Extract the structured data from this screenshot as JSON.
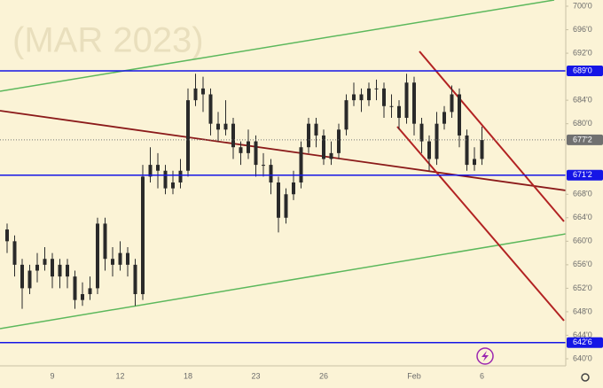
{
  "chart_data": {
    "type": "candlestick",
    "title": "(MAR 2023)",
    "categories": [
      null,
      null,
      null,
      null,
      null,
      null,
      "9",
      null,
      null,
      null,
      null,
      null,
      null,
      null,
      null,
      "12",
      null,
      null,
      null,
      null,
      null,
      null,
      null,
      null,
      "18",
      null,
      null,
      null,
      null,
      null,
      null,
      null,
      null,
      "23",
      null,
      null,
      null,
      null,
      null,
      null,
      null,
      null,
      "26",
      null,
      null,
      null,
      null,
      null,
      null,
      null,
      null,
      null,
      null,
      null,
      "Feb",
      null,
      null,
      null,
      null,
      null,
      null,
      null,
      null,
      "6"
    ],
    "open": [
      662,
      660,
      656,
      652,
      655,
      656,
      657,
      654,
      656,
      654,
      650,
      651,
      652,
      663,
      657,
      656,
      658,
      656,
      651,
      671,
      673,
      672,
      669,
      670,
      672,
      684,
      686,
      685,
      680,
      679,
      680,
      676,
      675,
      677,
      673,
      673,
      670,
      664,
      668,
      670,
      676,
      680,
      678,
      674,
      675,
      679,
      684,
      685,
      684,
      686,
      686,
      683,
      683,
      681,
      687,
      680,
      677,
      674,
      680,
      682,
      685,
      678,
      673,
      674
    ],
    "high": [
      663,
      661,
      657,
      656,
      658,
      659,
      658,
      657,
      657,
      655,
      653,
      654,
      664,
      664,
      659,
      660,
      659,
      657,
      673,
      676,
      675,
      673,
      672,
      674,
      686,
      688.5,
      688,
      686,
      682,
      684,
      681,
      677,
      679,
      678,
      675,
      674,
      671,
      669,
      672,
      677,
      681,
      681,
      679,
      677,
      680,
      685,
      687,
      686,
      687,
      687.5,
      687,
      685,
      684,
      688.5,
      688,
      681,
      678,
      682,
      683,
      686.5,
      686,
      679,
      676,
      679.5
    ],
    "low": [
      658,
      654,
      648.5,
      651,
      653,
      655,
      652,
      652,
      652,
      648.5,
      649,
      650,
      651,
      655,
      654,
      655,
      654,
      649,
      650,
      670,
      669,
      668,
      668,
      669,
      671,
      683,
      682,
      678,
      677,
      678,
      674,
      673,
      674,
      671,
      671,
      668,
      661.5,
      663,
      667,
      669,
      675,
      676,
      673,
      673,
      674,
      678,
      683,
      682,
      683,
      684,
      681,
      681,
      679,
      680,
      678,
      675,
      672,
      673,
      679,
      681,
      676,
      672,
      672,
      673
    ],
    "close": [
      660,
      656,
      652,
      655,
      656,
      657,
      654,
      656,
      654,
      650,
      651,
      652,
      663,
      657,
      656,
      658,
      656,
      651,
      671,
      673,
      672,
      669,
      670,
      672,
      684,
      686,
      685,
      680,
      679,
      680,
      676,
      675,
      677,
      673,
      673,
      670,
      664,
      668,
      670,
      676,
      680,
      678,
      674,
      675,
      679,
      684,
      685,
      684,
      686,
      686,
      683,
      683,
      681,
      687,
      680,
      677,
      674,
      680,
      682,
      685,
      678,
      673,
      674,
      677.25
    ],
    "color": "#2a2a2a",
    "ylim": [
      640,
      700
    ],
    "yticks": [
      {
        "value": 700,
        "label": "700'0"
      },
      {
        "value": 696,
        "label": "696'0"
      },
      {
        "value": 692,
        "label": "692'0"
      },
      {
        "value": 684,
        "label": "684'0"
      },
      {
        "value": 680,
        "label": "680'0"
      },
      {
        "value": 668,
        "label": "668'0"
      },
      {
        "value": 664,
        "label": "664'0"
      },
      {
        "value": 660,
        "label": "660'0"
      },
      {
        "value": 656,
        "label": "656'0"
      },
      {
        "value": 652,
        "label": "652'0"
      },
      {
        "value": 648,
        "label": "648'0"
      },
      {
        "value": 644,
        "label": "644'0"
      },
      {
        "value": 640,
        "label": "640'0"
      }
    ],
    "levels": [
      {
        "value": 689,
        "label": "689'0"
      },
      {
        "value": 671.25,
        "label": "671'2"
      },
      {
        "value": 642.75,
        "label": "642'6"
      }
    ],
    "level_color": "#1515e6",
    "last": {
      "value": 677.25,
      "label": "677'2"
    }
  }
}
